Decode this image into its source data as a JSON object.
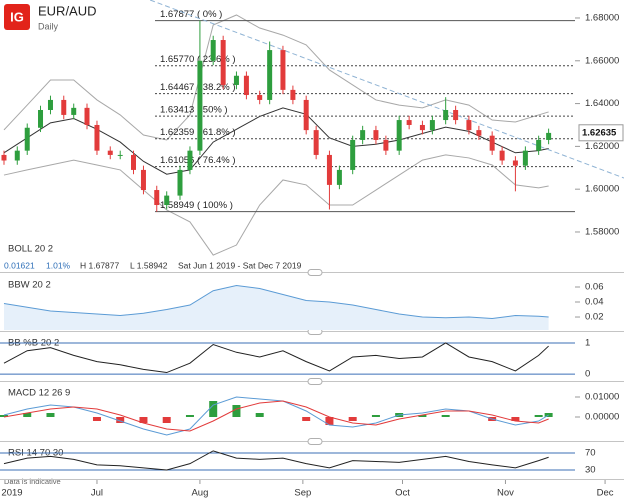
{
  "header": {
    "logo": "IG"
  },
  "footer": {
    "note": "Data is indicative"
  },
  "chart_data": [
    {
      "type": "candlestick",
      "title": "EUR/AUD",
      "subtitle": "Daily",
      "indicator": "BOLL 20 2",
      "info": {
        "change": "0.01621",
        "percent": "1.01%",
        "high": "H 1.67877",
        "low": "L 1.58942",
        "range": "Sat Jun 1 2019 - Sat Dec 7 2019"
      },
      "x": [
        3,
        7,
        10,
        14,
        17,
        21,
        24,
        28,
        31,
        35,
        38,
        42,
        45,
        49,
        52,
        56,
        59,
        62,
        66,
        69,
        73,
        76,
        80,
        83,
        87,
        90,
        94,
        97,
        101,
        104,
        108,
        111,
        115,
        118,
        122,
        125,
        129,
        132,
        136,
        139,
        143,
        146,
        150,
        153,
        157,
        160,
        164,
        167
      ],
      "open": [
        1.616,
        1.6134,
        1.618,
        1.6287,
        1.637,
        1.6417,
        1.6347,
        1.638,
        1.63,
        1.618,
        1.616,
        1.616,
        1.609,
        1.5996,
        1.5926,
        1.597,
        1.609,
        1.618,
        1.66,
        1.6697,
        1.6487,
        1.653,
        1.644,
        1.6417,
        1.665,
        1.6464,
        1.6417,
        1.6276,
        1.616,
        1.602,
        1.609,
        1.623,
        1.6276,
        1.623,
        1.618,
        1.6323,
        1.63,
        1.6276,
        1.6323,
        1.637,
        1.6323,
        1.6276,
        1.625,
        1.618,
        1.6134,
        1.611,
        1.618,
        1.623
      ],
      "high": [
        1.618,
        1.62,
        1.6307,
        1.639,
        1.6437,
        1.6437,
        1.64,
        1.64,
        1.632,
        1.62,
        1.618,
        1.618,
        1.611,
        1.6016,
        1.599,
        1.611,
        1.62,
        1.6788,
        1.6717,
        1.6717,
        1.655,
        1.655,
        1.646,
        1.669,
        1.667,
        1.6484,
        1.6437,
        1.6296,
        1.618,
        1.611,
        1.625,
        1.6296,
        1.6296,
        1.625,
        1.6343,
        1.6343,
        1.632,
        1.6343,
        1.643,
        1.639,
        1.6343,
        1.6296,
        1.627,
        1.62,
        1.6154,
        1.62,
        1.625,
        1.6283
      ],
      "low": [
        1.6114,
        1.6114,
        1.616,
        1.6267,
        1.635,
        1.6327,
        1.6327,
        1.628,
        1.616,
        1.614,
        1.614,
        1.607,
        1.5976,
        1.5895,
        1.5906,
        1.595,
        1.607,
        1.616,
        1.658,
        1.6467,
        1.6467,
        1.642,
        1.6397,
        1.6397,
        1.6444,
        1.6397,
        1.6256,
        1.614,
        1.5905,
        1.6,
        1.607,
        1.621,
        1.621,
        1.616,
        1.616,
        1.628,
        1.6256,
        1.6256,
        1.6303,
        1.6303,
        1.6256,
        1.623,
        1.616,
        1.6114,
        1.599,
        1.609,
        1.616,
        1.621
      ],
      "close": [
        1.6134,
        1.618,
        1.6287,
        1.637,
        1.6417,
        1.6347,
        1.638,
        1.63,
        1.618,
        1.616,
        1.616,
        1.609,
        1.5996,
        1.5926,
        1.597,
        1.609,
        1.618,
        1.66,
        1.6697,
        1.6487,
        1.653,
        1.644,
        1.6417,
        1.665,
        1.6464,
        1.6417,
        1.6276,
        1.616,
        1.602,
        1.609,
        1.623,
        1.6276,
        1.623,
        1.618,
        1.6323,
        1.63,
        1.6276,
        1.6323,
        1.637,
        1.6323,
        1.6276,
        1.625,
        1.618,
        1.6134,
        1.611,
        1.618,
        1.623,
        1.6263
      ],
      "up_color": "#2e9e3e",
      "down_color": "#e23b3b",
      "bands": {
        "x": [
          3,
          10,
          17,
          24,
          31,
          38,
          45,
          52,
          59,
          66,
          73,
          80,
          87,
          94,
          101,
          108,
          115,
          122,
          129,
          136,
          143,
          150,
          157,
          164,
          167
        ],
        "upper": [
          1.6277,
          1.6393,
          1.651,
          1.651,
          1.6417,
          1.6347,
          1.6253,
          1.623,
          1.6347,
          1.6767,
          1.6814,
          1.6753,
          1.672,
          1.6674,
          1.6557,
          1.6487,
          1.6417,
          1.6393,
          1.638,
          1.6417,
          1.6393,
          1.6323,
          1.6314,
          1.6347,
          1.6361
        ],
        "middle": [
          1.617,
          1.624,
          1.631,
          1.633,
          1.628,
          1.622,
          1.613,
          1.607,
          1.609,
          1.622,
          1.628,
          1.634,
          1.638,
          1.635,
          1.624,
          1.62,
          1.621,
          1.623,
          1.626,
          1.629,
          1.627,
          1.622,
          1.617,
          1.618,
          1.619
        ],
        "lower": [
          1.6066,
          1.609,
          1.6113,
          1.6136,
          1.6113,
          1.609,
          1.5996,
          1.5903,
          1.5847,
          1.5692,
          1.5739,
          1.5926,
          1.6043,
          1.602,
          1.5926,
          1.5926,
          1.5996,
          1.6066,
          1.6136,
          1.616,
          1.6146,
          1.6113,
          1.602,
          1.6006,
          1.6015
        ],
        "band_color": "#a8a8a8",
        "middle_color": "#333333"
      },
      "levels": [
        {
          "value": 1.67877,
          "label": "1.67877 ( 0% )"
        },
        {
          "value": 1.6577,
          "label": "1.65770 ( 23.6% )"
        },
        {
          "value": 1.64467,
          "label": "1.64467 ( 38.2% )"
        },
        {
          "value": 1.63413,
          "label": "1.63413 ( 50% )"
        },
        {
          "value": 1.62359,
          "label": "1.62359 ( 61.8% )"
        },
        {
          "value": 1.61056,
          "label": "1.61056 ( 76.4% )"
        },
        {
          "value": 1.58949,
          "label": "1.58949 ( 100% )"
        }
      ],
      "trendline": {
        "x": [
          47,
          189.7
        ],
        "values": [
          1.6884,
          1.6052
        ],
        "color": "#8fb3d4"
      },
      "last": {
        "value": 1.62635,
        "label": "1.62635"
      },
      "ylim": [
        1.5613,
        1.6884
      ],
      "yticks": [
        {
          "value": 1.58,
          "label": "1.58000"
        },
        {
          "value": 1.6,
          "label": "1.60000"
        },
        {
          "value": 1.62,
          "label": "1.62000"
        },
        {
          "value": 1.64,
          "label": "1.64000"
        },
        {
          "value": 1.66,
          "label": "1.66000"
        },
        {
          "value": 1.68,
          "label": "1.68000"
        }
      ]
    },
    {
      "type": "area",
      "title": "BBW 20 2",
      "x": [
        3,
        10,
        17,
        24,
        31,
        38,
        45,
        52,
        59,
        66,
        73,
        80,
        87,
        94,
        101,
        108,
        115,
        122,
        129,
        136,
        143,
        150,
        157,
        164,
        167
      ],
      "values": [
        0.038,
        0.033,
        0.028,
        0.026,
        0.024,
        0.022,
        0.025,
        0.03,
        0.036,
        0.055,
        0.062,
        0.058,
        0.05,
        0.042,
        0.04,
        0.036,
        0.03,
        0.024,
        0.02,
        0.019,
        0.02,
        0.018,
        0.022,
        0.021,
        0.02
      ],
      "color": "#5b9bd5",
      "ylim": [
        0.0027,
        0.076
      ],
      "yticks": [
        0.02,
        0.04,
        0.06
      ]
    },
    {
      "type": "line",
      "title": "BB %B 20 2",
      "x": [
        3,
        10,
        17,
        24,
        31,
        38,
        45,
        52,
        59,
        66,
        73,
        80,
        87,
        94,
        101,
        108,
        115,
        122,
        129,
        136,
        143,
        150,
        157,
        164,
        167
      ],
      "values": [
        0.35,
        0.75,
        0.85,
        0.6,
        0.4,
        0.3,
        0.15,
        0.05,
        0.35,
        0.95,
        0.7,
        0.55,
        0.75,
        0.4,
        0.1,
        0.55,
        0.6,
        0.5,
        0.55,
        1.0,
        0.55,
        0.4,
        0.1,
        0.6,
        0.9
      ],
      "color": "#222222",
      "ylim": [
        -0.19,
        1.32
      ],
      "yticks": [
        0,
        1
      ],
      "grid": true,
      "grid_color": "#3b6fb6"
    },
    {
      "type": "macd",
      "title": "MACD 12 26 9",
      "x": [
        3,
        10,
        17,
        24,
        31,
        38,
        45,
        52,
        59,
        66,
        73,
        80,
        87,
        94,
        101,
        108,
        115,
        122,
        129,
        136,
        143,
        150,
        157,
        164,
        167
      ],
      "macd": [
        0.001,
        0.004,
        0.006,
        0.005,
        0.002,
        -0.002,
        -0.006,
        -0.009,
        -0.006,
        0.006,
        0.01,
        0.009,
        0.008,
        0.003,
        -0.004,
        -0.005,
        -0.003,
        0.001,
        0.002,
        0.004,
        0.003,
        -0.001,
        -0.004,
        -0.002,
        0.001
      ],
      "signal": [
        0.0,
        0.002,
        0.004,
        0.005,
        0.004,
        0.001,
        -0.003,
        -0.006,
        -0.007,
        -0.002,
        0.004,
        0.007,
        0.008,
        0.005,
        0.0,
        -0.003,
        -0.004,
        -0.001,
        0.001,
        0.003,
        0.003,
        0.001,
        -0.002,
        -0.003,
        -0.001
      ],
      "histogram": [
        0.001,
        0.002,
        0.002,
        0.0,
        -0.002,
        -0.003,
        -0.003,
        -0.003,
        0.001,
        0.008,
        0.006,
        0.002,
        0.0,
        -0.002,
        -0.004,
        -0.002,
        0.001,
        0.002,
        0.001,
        0.001,
        0.0,
        -0.002,
        -0.002,
        0.001,
        0.002
      ],
      "macd_color": "#5b9bd5",
      "signal_color": "#e23b3b",
      "up_color": "#2e9e3e",
      "down_color": "#e23b3b",
      "ylim": [
        -0.0115,
        0.017
      ],
      "yticks": [
        {
          "value": 0.01,
          "label": "0.01000"
        },
        {
          "value": 0,
          "label": "0.00000"
        }
      ]
    },
    {
      "type": "line",
      "title": "RSI 14 70 30",
      "x": [
        3,
        10,
        17,
        24,
        31,
        38,
        45,
        52,
        59,
        66,
        73,
        80,
        87,
        94,
        101,
        108,
        115,
        122,
        129,
        136,
        143,
        150,
        157,
        164,
        167
      ],
      "values": [
        45,
        58,
        62,
        55,
        42,
        40,
        35,
        30,
        45,
        75,
        58,
        55,
        58,
        45,
        35,
        52,
        50,
        48,
        55,
        62,
        50,
        42,
        35,
        52,
        60
      ],
      "color": "#222222",
      "ylim": [
        11.2,
        93.5
      ],
      "yticks": [
        30,
        70
      ],
      "grid": true,
      "grid_color": "#3b6fb6",
      "xlim": [
        1.8,
        189.7
      ],
      "xticks": [
        {
          "value": 5,
          "label": "2019"
        },
        {
          "value": 31,
          "label": "Jul"
        },
        {
          "value": 62,
          "label": "Aug"
        },
        {
          "value": 93,
          "label": "Sep"
        },
        {
          "value": 123,
          "label": "Oct"
        },
        {
          "value": 154,
          "label": "Nov"
        },
        {
          "value": 184,
          "label": "Dec"
        }
      ]
    }
  ]
}
